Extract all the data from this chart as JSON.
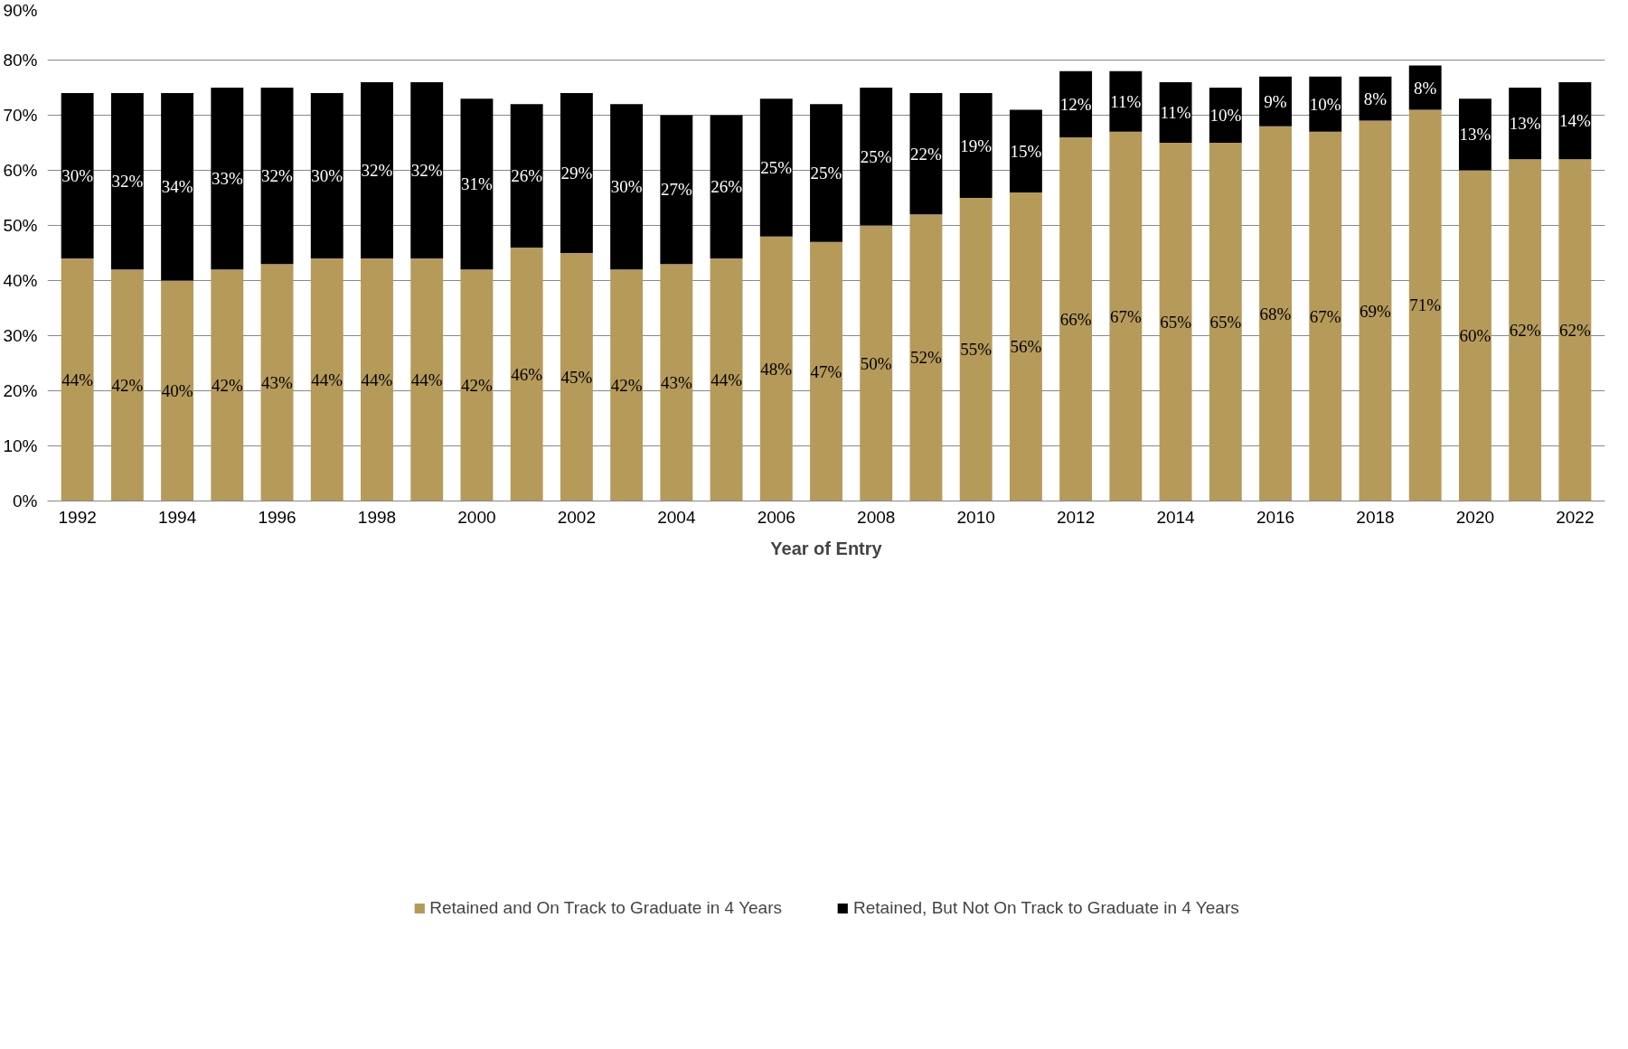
{
  "chart_data": {
    "type": "bar",
    "stacked": true,
    "xlabel": "Year of Entry",
    "categories": [
      "1992",
      null,
      "1994",
      null,
      "1996",
      null,
      "1998",
      null,
      "2000",
      null,
      "2002",
      null,
      "2004",
      null,
      "2006",
      null,
      "2008",
      null,
      "2010",
      null,
      "2012",
      null,
      "2014",
      null,
      "2016",
      null,
      "2018",
      null,
      "2020",
      null,
      "2022"
    ],
    "series": [
      {
        "name": "Retained and On Track to Graduate in 4 Years",
        "color": "#b59a5a",
        "values": [
          44,
          42,
          40,
          42,
          43,
          44,
          44,
          44,
          42,
          46,
          45,
          42,
          43,
          44,
          48,
          47,
          50,
          52,
          55,
          56,
          66,
          67,
          65,
          65,
          68,
          67,
          69,
          71,
          60,
          62,
          62
        ],
        "value_labels": [
          "44%",
          "42%",
          "40%",
          "42%",
          "43%",
          "44%",
          "44%",
          "44%",
          "42%",
          "46%",
          "45%",
          "42%",
          "43%",
          "44%",
          "48%",
          "47%",
          "50%",
          "52%",
          "55%",
          "56%",
          "66%",
          "67%",
          "65%",
          "65%",
          "68%",
          "67%",
          "69%",
          "71%",
          "60%",
          "62%",
          "62%"
        ]
      },
      {
        "name": "Retained, But Not On Track to Graduate in 4 Years",
        "color": "#000000",
        "values": [
          30,
          32,
          34,
          33,
          32,
          30,
          32,
          32,
          31,
          26,
          29,
          30,
          27,
          26,
          25,
          25,
          25,
          22,
          19,
          15,
          12,
          11,
          11,
          10,
          9,
          10,
          8,
          8,
          13,
          13,
          14
        ],
        "value_labels": [
          "30%",
          "32%",
          "34%",
          "33%",
          "32%",
          "30%",
          "32%",
          "32%",
          "31%",
          "26%",
          "29%",
          "30%",
          "27%",
          "26%",
          "25%",
          "25%",
          "25%",
          "22%",
          "19%",
          "15%",
          "12%",
          "11%",
          "11%",
          "10%",
          "9%",
          "10%",
          "8%",
          "8%",
          "13%",
          "13%",
          "14%"
        ]
      }
    ],
    "ylim": [
      0,
      90
    ],
    "yticks": [
      {
        "value": 0,
        "label": "0%"
      },
      {
        "value": 10,
        "label": "10%"
      },
      {
        "value": 20,
        "label": "20%"
      },
      {
        "value": 30,
        "label": "30%"
      },
      {
        "value": 40,
        "label": "40%"
      },
      {
        "value": 50,
        "label": "50%"
      },
      {
        "value": 60,
        "label": "60%"
      },
      {
        "value": 70,
        "label": "70%"
      },
      {
        "value": 80,
        "label": "80%"
      },
      {
        "value": 90,
        "label": "90%"
      }
    ],
    "grid": "y",
    "legend": "bottom"
  }
}
